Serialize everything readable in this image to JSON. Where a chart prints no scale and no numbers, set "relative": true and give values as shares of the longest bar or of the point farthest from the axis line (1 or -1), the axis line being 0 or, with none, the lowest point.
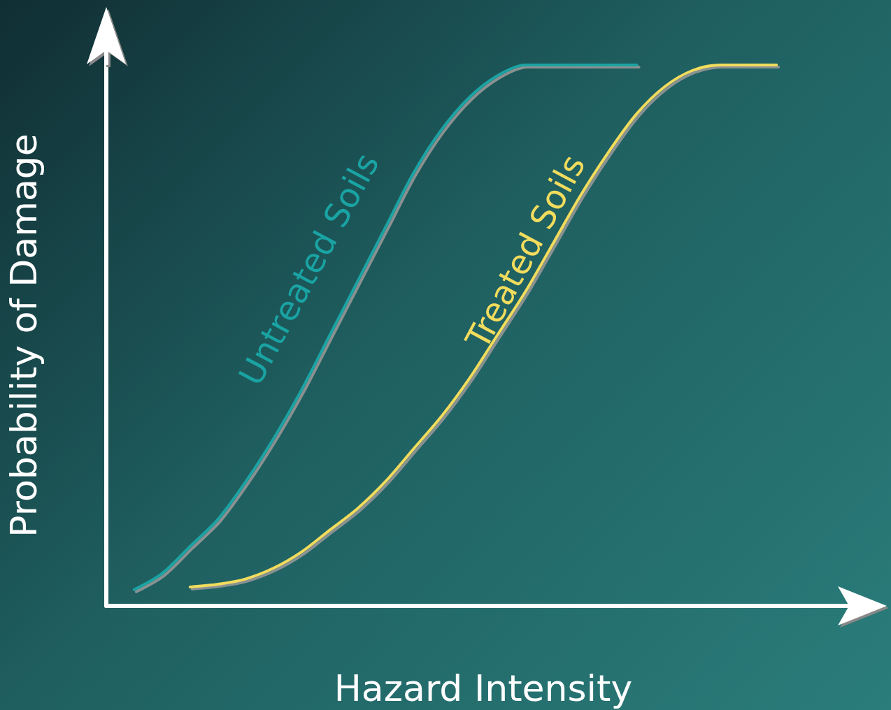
{
  "chart_data": {
    "type": "line",
    "relative": true,
    "xlabel": "Hazard Intensity",
    "ylabel": "Probability of Damage",
    "grid": false,
    "legend": false,
    "marker": "none",
    "line_style": "solid",
    "categories": [
      null,
      null,
      null,
      null,
      null,
      null,
      null,
      null,
      null,
      null,
      null,
      null,
      null,
      null,
      null,
      null,
      null,
      null,
      null,
      null,
      null,
      null,
      null,
      null,
      null,
      null,
      null,
      null
    ],
    "series": [
      {
        "name": "Untreated Soils",
        "color": "#1aa3a3",
        "values": [
          null,
          0.03,
          0.06,
          0.11,
          0.16,
          0.23,
          0.31,
          0.4,
          0.5,
          0.6,
          0.7,
          0.8,
          0.88,
          0.94,
          0.98,
          1.0,
          1.0,
          1.0,
          1.0,
          1.0,
          null,
          null,
          null,
          null,
          null,
          null,
          null,
          null
        ]
      },
      {
        "name": "Treated Soils",
        "color": "#f2dc5d",
        "values": [
          null,
          null,
          null,
          0.035,
          0.04,
          0.05,
          0.07,
          0.1,
          0.14,
          0.18,
          0.23,
          0.29,
          0.35,
          0.42,
          0.5,
          0.58,
          0.67,
          0.76,
          0.84,
          0.91,
          0.96,
          0.99,
          1.0,
          1.0,
          1.0,
          null,
          null,
          null
        ]
      }
    ]
  }
}
